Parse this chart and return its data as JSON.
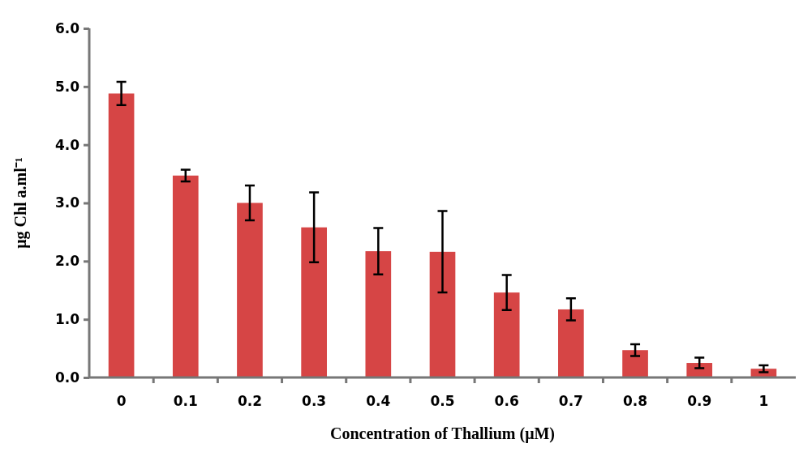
{
  "chart_data": {
    "type": "bar",
    "xlabel": "Concentration of Thallium (μM)",
    "ylabel": "μg Chl a.ml⁻¹",
    "categories": [
      "0",
      "0.1",
      "0.2",
      "0.3",
      "0.4",
      "0.5",
      "0.6",
      "0.7",
      "0.8",
      "0.9",
      "1"
    ],
    "values": [
      4.88,
      3.47,
      3.0,
      2.58,
      2.17,
      2.16,
      1.46,
      1.17,
      0.47,
      0.25,
      0.15
    ],
    "errors": [
      0.2,
      0.1,
      0.3,
      0.6,
      0.4,
      0.7,
      0.3,
      0.19,
      0.1,
      0.09,
      0.06
    ],
    "color": "#d64545",
    "ylim": [
      0,
      6
    ],
    "yticks": [
      {
        "value": 0,
        "label": "0.0"
      },
      {
        "value": 1,
        "label": "1.0"
      },
      {
        "value": 2,
        "label": "2.0"
      },
      {
        "value": 3,
        "label": "3.0"
      },
      {
        "value": 4,
        "label": "4.0"
      },
      {
        "value": 5,
        "label": "5.0"
      },
      {
        "value": 6,
        "label": "6.0"
      }
    ],
    "grid": false
  }
}
